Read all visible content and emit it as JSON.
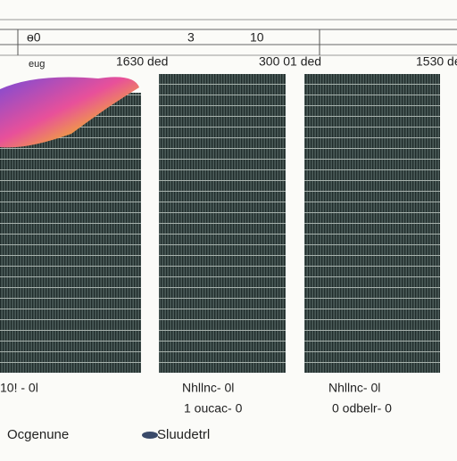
{
  "ruler": {
    "labels": [
      "ɵ0",
      "3",
      "10"
    ]
  },
  "panels": [
    {
      "header": "eug",
      "header2": "1630 ded",
      "caption": "10! - 0l",
      "caption2": ""
    },
    {
      "header": "",
      "header2": "300 01 ded",
      "caption": "Nhllnc- 0l",
      "caption2": "1 oucac- 0"
    },
    {
      "header": "",
      "header2": "1530 ded",
      "caption": "Nhllnc- 0l",
      "caption2": "0 odbelr- 0"
    }
  ],
  "legend": [
    "Ocgenune",
    "Sluudetrl"
  ]
}
